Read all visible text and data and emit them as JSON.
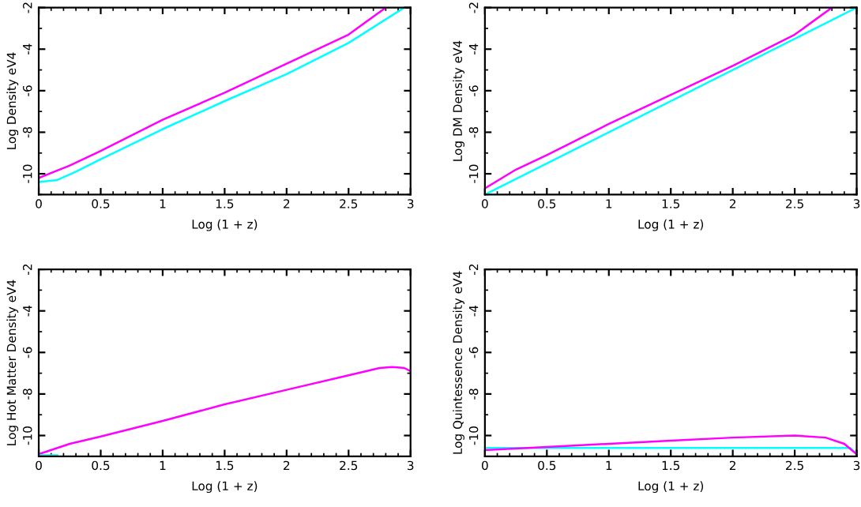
{
  "chart_data": [
    {
      "type": "line",
      "xlabel": "Log (1 + z)",
      "ylabel": "Log Density eV4",
      "xlim": [
        0,
        3
      ],
      "ylim": [
        -11,
        -2
      ],
      "xticks": [
        0,
        0.5,
        1,
        1.5,
        2,
        2.5,
        3
      ],
      "yticks": [
        -10,
        -8,
        -6,
        -4,
        -2
      ],
      "grid": false,
      "legend": false,
      "series": [
        {
          "color": "#ff00ff",
          "x": [
            0,
            0.25,
            0.5,
            1,
            1.5,
            2,
            2.5,
            2.8
          ],
          "values": [
            -10.2,
            -9.6,
            -8.9,
            -7.4,
            -6.1,
            -4.7,
            -3.3,
            -2
          ]
        },
        {
          "color": "#00ffff",
          "x": [
            0,
            0.15,
            0.3,
            0.5,
            1,
            1.5,
            2,
            2.5,
            2.95
          ],
          "values": [
            -10.4,
            -10.3,
            -9.9,
            -9.3,
            -7.85,
            -6.5,
            -5.2,
            -3.7,
            -2
          ]
        }
      ]
    },
    {
      "type": "line",
      "xlabel": "Log (1 + z)",
      "ylabel": "Log DM Density eV4",
      "xlim": [
        0,
        3
      ],
      "ylim": [
        -11,
        -2
      ],
      "xticks": [
        0,
        0.5,
        1,
        1.5,
        2,
        2.5,
        3
      ],
      "yticks": [
        -10,
        -8,
        -6,
        -4,
        -2
      ],
      "grid": false,
      "legend": false,
      "series": [
        {
          "color": "#ff00ff",
          "x": [
            0,
            0.25,
            0.5,
            1,
            1.5,
            2,
            2.5,
            2.8
          ],
          "values": [
            -10.7,
            -9.8,
            -9.1,
            -7.6,
            -6.2,
            -4.8,
            -3.3,
            -2
          ]
        },
        {
          "color": "#00ffff",
          "x": [
            0,
            3
          ],
          "values": [
            -11,
            -2
          ]
        }
      ]
    },
    {
      "type": "line",
      "xlabel": "Log (1 + z)",
      "ylabel": "Log Hot Matter Density eV4",
      "xlim": [
        0,
        3
      ],
      "ylim": [
        -11,
        -2
      ],
      "xticks": [
        0,
        0.5,
        1,
        1.5,
        2,
        2.5,
        3
      ],
      "yticks": [
        -10,
        -8,
        -6,
        -4,
        -2
      ],
      "grid": false,
      "legend": false,
      "series": [
        {
          "color": "#ff00ff",
          "x": [
            0,
            0.25,
            0.5,
            1,
            1.5,
            2,
            2.5,
            2.75,
            2.85,
            2.95,
            3
          ],
          "values": [
            -10.9,
            -10.4,
            -10.05,
            -9.3,
            -8.5,
            -7.8,
            -7.1,
            -6.75,
            -6.7,
            -6.75,
            -6.9
          ]
        },
        {
          "color": "#00ffff",
          "x": [
            0,
            0.15
          ],
          "values": [
            -10.95,
            -10.95
          ]
        }
      ]
    },
    {
      "type": "line",
      "xlabel": "Log (1 + z)",
      "ylabel": "Log Quintessence Density eV4",
      "xlim": [
        0,
        3
      ],
      "ylim": [
        -11,
        -2
      ],
      "xticks": [
        0,
        0.5,
        1,
        1.5,
        2,
        2.5,
        3
      ],
      "yticks": [
        -10,
        -8,
        -6,
        -4,
        -2
      ],
      "grid": false,
      "legend": false,
      "series": [
        {
          "color": "#00ffff",
          "x": [
            0,
            2.95,
            3
          ],
          "values": [
            -10.6,
            -10.6,
            -10.9
          ]
        },
        {
          "color": "#ff00ff",
          "x": [
            0,
            0.5,
            1,
            1.5,
            2,
            2.5,
            2.75,
            2.9,
            3
          ],
          "values": [
            -10.7,
            -10.55,
            -10.4,
            -10.25,
            -10.1,
            -10.0,
            -10.1,
            -10.4,
            -10.9
          ]
        }
      ]
    }
  ]
}
